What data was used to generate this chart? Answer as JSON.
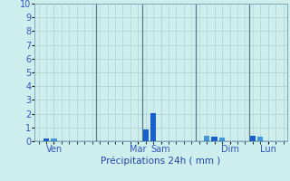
{
  "title": "",
  "xlabel": "Précipitations 24h ( mm )",
  "ylabel": "",
  "ylim": [
    0,
    10
  ],
  "background_color": "#ceeeed",
  "grid_color": "#b0cccc",
  "tick_label_color": "#3355bb",
  "xlabel_color": "#2244aa",
  "bar_positions": [
    1,
    2,
    14,
    15,
    22,
    23,
    24,
    28,
    29
  ],
  "bar_heights": [
    0.22,
    0.18,
    0.85,
    2.05,
    0.42,
    0.32,
    0.28,
    0.42,
    0.35
  ],
  "bar_colors": [
    "#1a5fcc",
    "#4499dd",
    "#1a5fcc",
    "#1a5fcc",
    "#4499dd",
    "#1a5fcc",
    "#4499dd",
    "#1a5fcc",
    "#4499dd"
  ],
  "total_bars": 33,
  "day_ticks": [
    2,
    13,
    16,
    25,
    30
  ],
  "day_labels": [
    "Ven",
    "Mar",
    "Sam",
    "Dim",
    "Lun"
  ],
  "day_vlines": [
    7.5,
    13.5,
    20.5,
    27.5
  ]
}
